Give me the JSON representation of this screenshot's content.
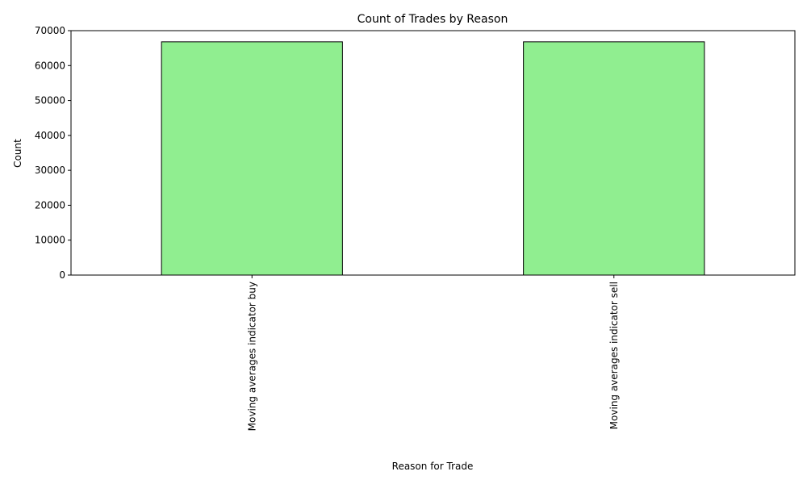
{
  "chart_data": {
    "type": "bar",
    "title": "Count of Trades by Reason",
    "xlabel": "Reason for Trade",
    "ylabel": "Count",
    "categories": [
      "Moving averages indicator buy",
      "Moving averages indicator sell"
    ],
    "values": [
      66800,
      66800
    ],
    "ylim": [
      0,
      70000
    ],
    "yticks": [
      0,
      10000,
      20000,
      30000,
      40000,
      50000,
      60000,
      70000
    ],
    "grid": false,
    "legend": "none",
    "colors": {
      "bar_fill": "#90ee90",
      "bar_edge": "#000000",
      "axis": "#000000",
      "background": "#ffffff"
    }
  }
}
